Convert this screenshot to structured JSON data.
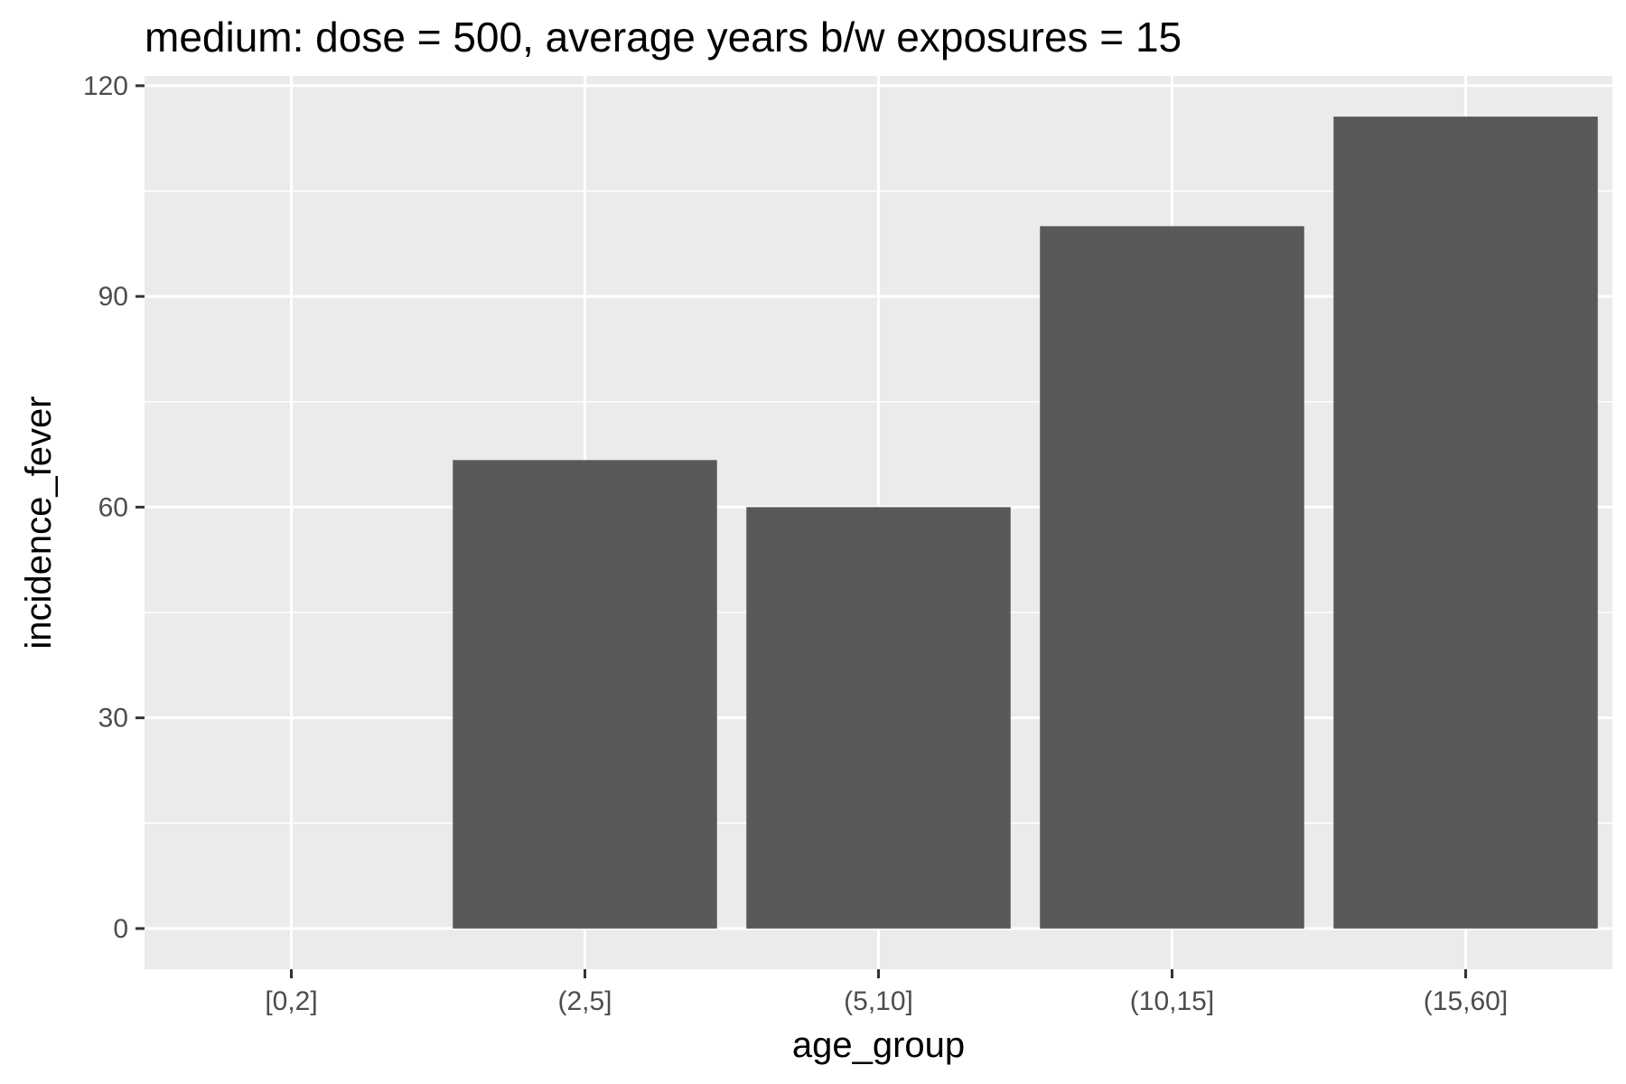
{
  "chart_data": {
    "type": "bar",
    "title": "medium: dose = 500, average years b/w exposures = 15",
    "xlabel": "age_group",
    "ylabel": "incidence_fever",
    "categories": [
      "[0,2]",
      "(2,5]",
      "(5,10]",
      "(10,15]",
      "(15,60]"
    ],
    "values": [
      0,
      66.7,
      60,
      100,
      115.6
    ],
    "ylim": [
      -5.8,
      121.4
    ],
    "yticks": [
      0,
      30,
      60,
      90,
      120
    ],
    "grid": true,
    "panel_color": "#ebebeb",
    "bar_color": "#595959"
  }
}
